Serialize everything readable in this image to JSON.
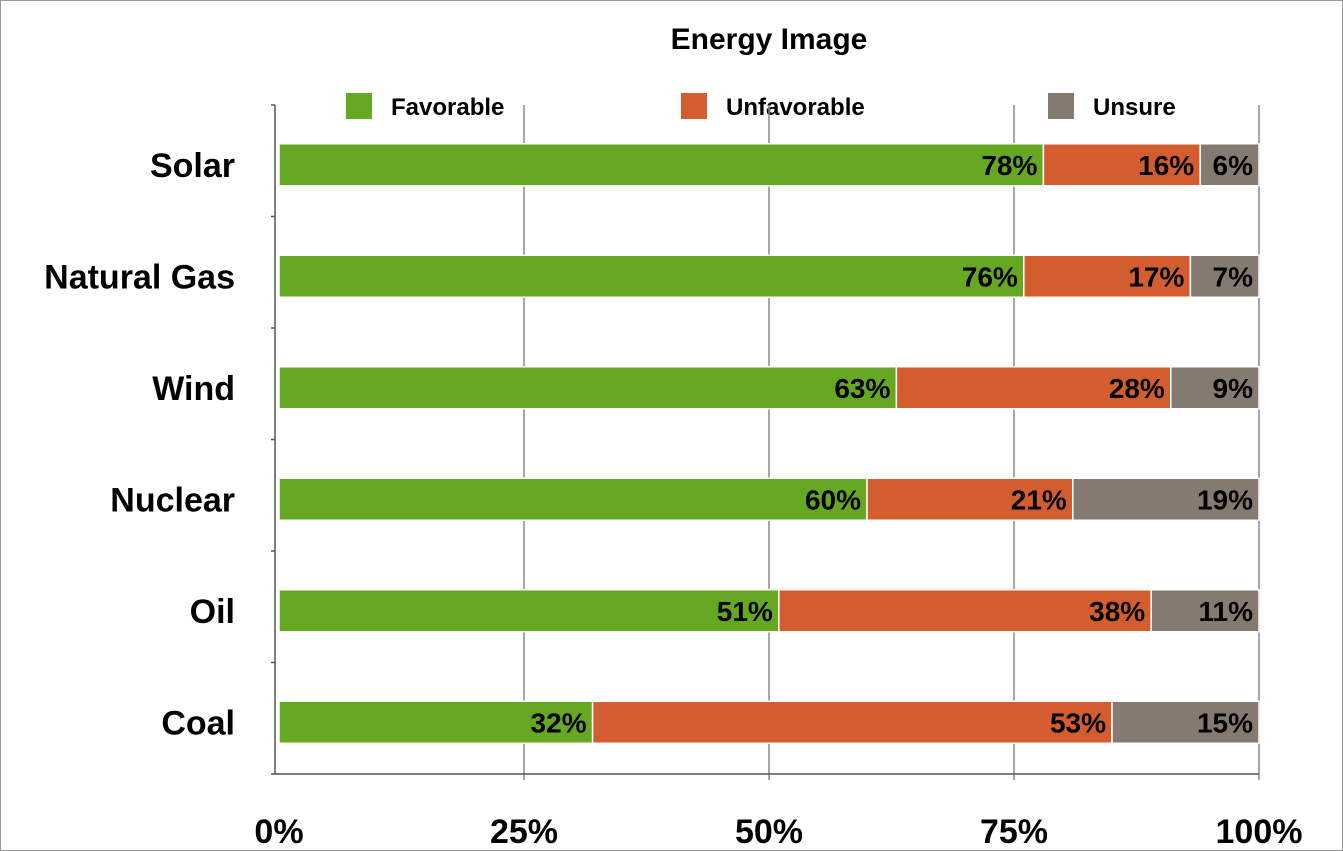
{
  "chart_data": {
    "type": "bar",
    "orientation": "horizontal",
    "stacked": true,
    "title": "Energy Image",
    "categories": [
      "Solar",
      "Natural Gas",
      "Wind",
      "Nuclear",
      "Oil",
      "Coal"
    ],
    "series": [
      {
        "name": "Favorable",
        "color": "#67a823",
        "values": [
          78,
          76,
          63,
          60,
          51,
          32
        ],
        "labels": [
          "78%",
          "76%",
          "63%",
          "60%",
          "51%",
          "32%"
        ]
      },
      {
        "name": "Unfavorable",
        "color": "#d45d2f",
        "values": [
          16,
          17,
          28,
          21,
          38,
          53
        ],
        "labels": [
          "16%",
          "17%",
          "28%",
          "21%",
          "38%",
          "53%"
        ]
      },
      {
        "name": "Unsure",
        "color": "#857a70",
        "values": [
          6,
          7,
          9,
          19,
          11,
          15
        ],
        "labels": [
          "6%",
          "7%",
          "9%",
          "19%",
          "11%",
          "15%"
        ]
      }
    ],
    "xlim": [
      0,
      100
    ],
    "x_ticks": [
      0,
      25,
      50,
      75,
      100
    ],
    "x_tick_labels": [
      "0%",
      "25%",
      "50%",
      "75%",
      "100%"
    ],
    "xlabel": "",
    "ylabel": "",
    "grid": "vertical",
    "legend_position": "top"
  }
}
